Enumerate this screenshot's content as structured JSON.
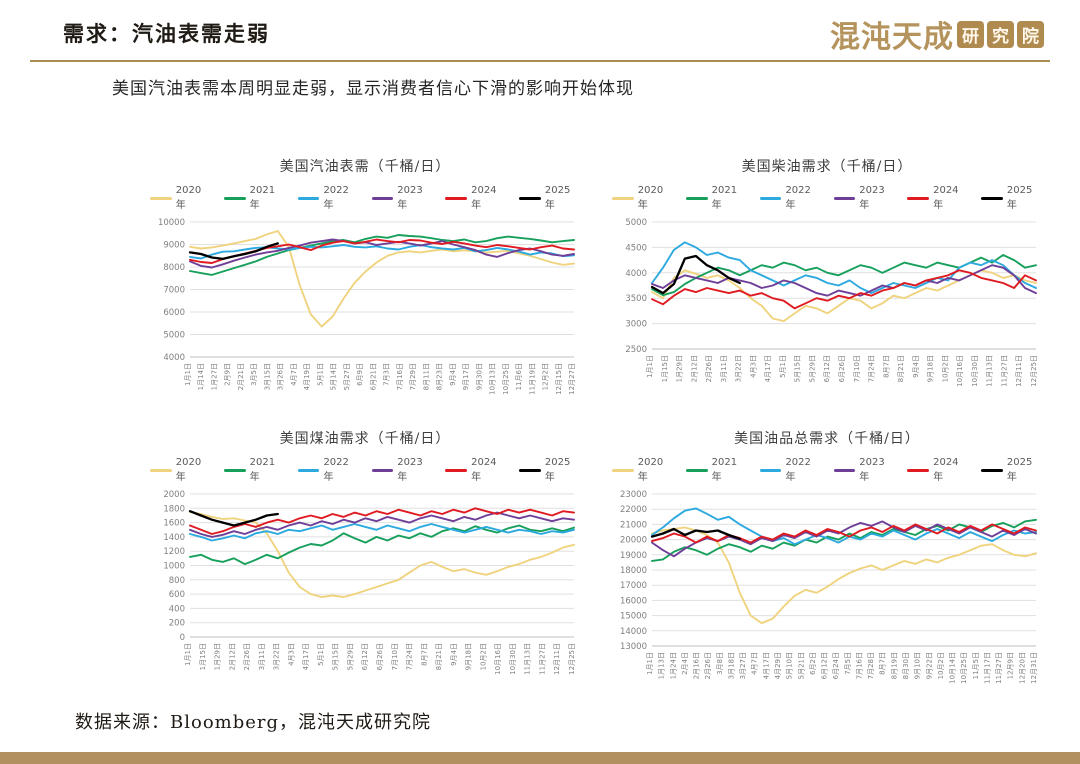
{
  "page": {
    "title": "需求：汽油表需走弱",
    "subtitle": "美国汽油表需本周明显走弱，显示消费者信心下滑的影响开始体现",
    "footer": "数据来源：Bloomberg，混沌天成研究院",
    "logo_text": "混沌天成",
    "logo_seal": [
      "研",
      "究",
      "院"
    ],
    "accent_gold": "#a98d52",
    "bottom_bar_color": "#b2905f"
  },
  "series_colors": [
    "#EFD37E",
    "#17A05C",
    "#2CA9DF",
    "#6F3F98",
    "#DF1B21",
    "#000000"
  ],
  "chart_data": [
    {
      "type": "line",
      "title": "美国汽油表需（千桶/日）",
      "ylabel": "",
      "xlabel": "",
      "ylim": [
        4000,
        10000
      ],
      "ytick_step": 1000,
      "grid": true,
      "legend_position": "top",
      "x_labels": [
        "1月1日",
        "1月14日",
        "1月27日",
        "2月9日",
        "2月21日",
        "3月5日",
        "3月15日",
        "3月26日",
        "4月7日",
        "4月19日",
        "5月1日",
        "5月14日",
        "5月27日",
        "6月9日",
        "6月21日",
        "7月3日",
        "7月16日",
        "7月29日",
        "8月11日",
        "8月23日",
        "9月4日",
        "9月17日",
        "9月30日",
        "10月13日",
        "10月25日",
        "11月6日",
        "11月19日",
        "12月2日",
        "12月15日",
        "12月27日"
      ],
      "series": [
        {
          "name": "2020年",
          "values": [
            8900,
            8820,
            8870,
            8950,
            9050,
            9150,
            9250,
            9450,
            9600,
            8900,
            7200,
            5900,
            5350,
            5800,
            6600,
            7300,
            7800,
            8200,
            8500,
            8650,
            8700,
            8650,
            8720,
            8780,
            8700,
            8740,
            8700,
            8640,
            8680,
            8720,
            8600,
            8500,
            8350,
            8200,
            8100,
            8150
          ]
        },
        {
          "name": "2021年",
          "values": [
            7820,
            7730,
            7650,
            7800,
            7950,
            8100,
            8250,
            8450,
            8600,
            8750,
            8850,
            8950,
            9050,
            9150,
            9200,
            9100,
            9250,
            9350,
            9300,
            9420,
            9380,
            9350,
            9280,
            9200,
            9150,
            9220,
            9100,
            9150,
            9280,
            9350,
            9300,
            9250,
            9180,
            9100,
            9150,
            9200
          ]
        },
        {
          "name": "2022年",
          "values": [
            8450,
            8380,
            8550,
            8680,
            8700,
            8780,
            8850,
            8880,
            8820,
            8780,
            8850,
            8900,
            8870,
            8920,
            8980,
            8900,
            8870,
            8920,
            8820,
            8780,
            8900,
            8980,
            8880,
            8820,
            8780,
            8850,
            8700,
            8750,
            8850,
            8780,
            8680,
            8550,
            8650,
            8600,
            8480,
            8520
          ]
        },
        {
          "name": "2023年",
          "values": [
            8250,
            8050,
            7980,
            8120,
            8280,
            8420,
            8550,
            8650,
            8720,
            8850,
            8950,
            9080,
            9150,
            9220,
            9150,
            9050,
            9100,
            8980,
            9050,
            9120,
            9050,
            8950,
            9050,
            9150,
            9000,
            8880,
            8750,
            8550,
            8450,
            8620,
            8750,
            8820,
            8700,
            8550,
            8500,
            8580
          ]
        },
        {
          "name": "2024年",
          "values": [
            8320,
            8220,
            8180,
            8350,
            8480,
            8600,
            8720,
            8850,
            8920,
            9000,
            8880,
            8750,
            8950,
            9080,
            9150,
            9050,
            9120,
            9220,
            9150,
            9100,
            9200,
            9180,
            9080,
            9020,
            9120,
            9050,
            8950,
            8880,
            8980,
            8920,
            8850,
            8780,
            8880,
            8950,
            8820,
            8780
          ]
        },
        {
          "name": "2025年",
          "values": [
            8650,
            8580,
            8420,
            8360,
            8480,
            8580,
            8700,
            8900,
            9050
          ]
        }
      ]
    },
    {
      "type": "line",
      "title": "美国柴油需求（千桶/日）",
      "ylabel": "",
      "xlabel": "",
      "ylim": [
        2500,
        5000
      ],
      "ytick_step": 500,
      "grid": true,
      "legend_position": "top",
      "x_labels": [
        "1月1日",
        "1月15日",
        "1月29日",
        "2月12日",
        "2月26日",
        "3月11日",
        "3月22日",
        "4月3日",
        "4月17日",
        "5月1日",
        "5月15日",
        "5月29日",
        "6月12日",
        "6月26日",
        "7月10日",
        "7月24日",
        "8月7日",
        "8月21日",
        "9月4日",
        "9月18日",
        "10月2日",
        "10月16日",
        "10月30日",
        "11月13日",
        "11月27日",
        "12月11日",
        "12月25日"
      ],
      "series": [
        {
          "name": "2020年",
          "values": [
            3620,
            3500,
            3900,
            4050,
            3980,
            3900,
            3950,
            3850,
            3700,
            3500,
            3350,
            3100,
            3050,
            3200,
            3350,
            3300,
            3200,
            3350,
            3500,
            3450,
            3300,
            3400,
            3550,
            3500,
            3600,
            3700,
            3650,
            3750,
            3850,
            3950,
            4050,
            4000,
            3900,
            3950,
            3850,
            3800
          ]
        },
        {
          "name": "2021年",
          "values": [
            3680,
            3560,
            3620,
            3780,
            3900,
            4000,
            4100,
            4050,
            3950,
            4050,
            4150,
            4100,
            4200,
            4150,
            4050,
            4100,
            4000,
            3950,
            4050,
            4150,
            4100,
            4000,
            4100,
            4200,
            4150,
            4100,
            4200,
            4150,
            4100,
            4200,
            4300,
            4200,
            4350,
            4250,
            4100,
            4150
          ]
        },
        {
          "name": "2022年",
          "values": [
            3800,
            4100,
            4450,
            4600,
            4500,
            4350,
            4400,
            4300,
            4250,
            4050,
            3950,
            3850,
            3750,
            3850,
            3950,
            3900,
            3800,
            3750,
            3850,
            3700,
            3600,
            3700,
            3800,
            3750,
            3700,
            3800,
            3900,
            3850,
            4100,
            4200,
            4150,
            4250,
            4150,
            3950,
            3800,
            3700
          ]
        },
        {
          "name": "2023年",
          "values": [
            3780,
            3700,
            3850,
            3950,
            3900,
            3850,
            3800,
            3900,
            3850,
            3800,
            3700,
            3750,
            3850,
            3800,
            3700,
            3600,
            3550,
            3650,
            3600,
            3550,
            3650,
            3750,
            3700,
            3800,
            3750,
            3850,
            3800,
            3900,
            3850,
            3950,
            4050,
            4150,
            4100,
            3950,
            3700,
            3600
          ]
        },
        {
          "name": "2024年",
          "values": [
            3480,
            3380,
            3550,
            3680,
            3620,
            3700,
            3650,
            3600,
            3650,
            3550,
            3600,
            3500,
            3450,
            3300,
            3400,
            3500,
            3450,
            3550,
            3500,
            3600,
            3550,
            3650,
            3700,
            3800,
            3750,
            3850,
            3900,
            3950,
            4050,
            4000,
            3900,
            3850,
            3800,
            3700,
            3950,
            3850
          ]
        },
        {
          "name": "2025年",
          "values": [
            3720,
            3600,
            3780,
            4280,
            4330,
            4150,
            4050,
            3900,
            3800
          ]
        }
      ]
    },
    {
      "type": "line",
      "title": "美国煤油需求（千桶/日）",
      "ylabel": "",
      "xlabel": "",
      "ylim": [
        0,
        2000
      ],
      "ytick_step": 200,
      "grid": true,
      "legend_position": "top",
      "x_labels": [
        "1月1日",
        "1月15日",
        "1月29日",
        "2月12日",
        "2月26日",
        "3月11日",
        "3月22日",
        "4月3日",
        "4月17日",
        "5月1日",
        "5月15日",
        "5月29日",
        "6月12日",
        "6月26日",
        "7月10日",
        "7月24日",
        "8月7日",
        "8月21日",
        "9月4日",
        "9月18日",
        "10月2日",
        "10月16日",
        "10月30日",
        "11月13日",
        "11月27日",
        "12月11日",
        "12月25日"
      ],
      "series": [
        {
          "name": "2020年",
          "values": [
            1750,
            1720,
            1680,
            1650,
            1660,
            1630,
            1600,
            1450,
            1200,
            900,
            700,
            600,
            560,
            580,
            560,
            600,
            650,
            700,
            750,
            800,
            900,
            1000,
            1050,
            980,
            920,
            950,
            900,
            870,
            920,
            980,
            1020,
            1080,
            1120,
            1180,
            1250,
            1290
          ]
        },
        {
          "name": "2021年",
          "values": [
            1120,
            1150,
            1080,
            1050,
            1100,
            1020,
            1080,
            1150,
            1100,
            1180,
            1250,
            1300,
            1280,
            1350,
            1450,
            1380,
            1320,
            1400,
            1350,
            1420,
            1380,
            1450,
            1400,
            1480,
            1520,
            1480,
            1550,
            1500,
            1460,
            1520,
            1560,
            1500,
            1480,
            1520,
            1480,
            1530
          ]
        },
        {
          "name": "2022年",
          "values": [
            1440,
            1400,
            1350,
            1380,
            1420,
            1380,
            1450,
            1480,
            1440,
            1500,
            1480,
            1520,
            1560,
            1500,
            1540,
            1580,
            1540,
            1500,
            1560,
            1520,
            1480,
            1540,
            1580,
            1540,
            1500,
            1460,
            1500,
            1540,
            1500,
            1460,
            1500,
            1480,
            1440,
            1480,
            1460,
            1500
          ]
        },
        {
          "name": "2023年",
          "values": [
            1500,
            1440,
            1400,
            1430,
            1480,
            1440,
            1500,
            1540,
            1500,
            1560,
            1600,
            1560,
            1620,
            1580,
            1640,
            1600,
            1660,
            1620,
            1680,
            1640,
            1600,
            1660,
            1700,
            1660,
            1620,
            1680,
            1640,
            1700,
            1740,
            1700,
            1660,
            1700,
            1660,
            1620,
            1660,
            1640
          ]
        },
        {
          "name": "2024年",
          "values": [
            1560,
            1500,
            1440,
            1480,
            1540,
            1580,
            1540,
            1600,
            1640,
            1600,
            1660,
            1700,
            1660,
            1720,
            1680,
            1740,
            1700,
            1760,
            1720,
            1780,
            1740,
            1700,
            1760,
            1720,
            1780,
            1740,
            1800,
            1760,
            1720,
            1780,
            1740,
            1780,
            1740,
            1700,
            1760,
            1740
          ]
        },
        {
          "name": "2025年",
          "values": [
            1760,
            1700,
            1640,
            1600,
            1560,
            1600,
            1640,
            1700,
            1720
          ]
        }
      ]
    },
    {
      "type": "line",
      "title": "美国油品总需求（千桶/日）",
      "ylabel": "",
      "xlabel": "",
      "ylim": [
        13000,
        23000
      ],
      "ytick_step": 1000,
      "grid": true,
      "legend_position": "top",
      "x_labels": [
        "1月1日",
        "1月13日",
        "1月24日",
        "2月4日",
        "2月16日",
        "2月26日",
        "3月8日",
        "3月18日",
        "3月27日",
        "4月7日",
        "4月17日",
        "4月29日",
        "5月10日",
        "5月21日",
        "6月2日",
        "6月12日",
        "6月24日",
        "7月5日",
        "7月16日",
        "7月28日",
        "8月7日",
        "8月19日",
        "8月30日",
        "9月10日",
        "9月22日",
        "10月2日",
        "10月14日",
        "10月25日",
        "11月5日",
        "11月17日",
        "11月27日",
        "12月9日",
        "12月20日",
        "12月31日"
      ],
      "series": [
        {
          "name": "2020年",
          "values": [
            20400,
            20600,
            20700,
            20800,
            20600,
            20300,
            19800,
            18500,
            16500,
            15000,
            14500,
            14800,
            15600,
            16300,
            16700,
            16500,
            16900,
            17400,
            17800,
            18100,
            18300,
            18000,
            18300,
            18600,
            18400,
            18700,
            18500,
            18800,
            19000,
            19300,
            19600,
            19700,
            19300,
            19000,
            18900,
            19100
          ]
        },
        {
          "name": "2021年",
          "values": [
            18600,
            18700,
            19200,
            19500,
            19300,
            19000,
            19400,
            19700,
            19500,
            19200,
            19600,
            19400,
            19800,
            19600,
            20000,
            19800,
            20200,
            20000,
            20400,
            20100,
            20500,
            20300,
            20700,
            20500,
            20300,
            20700,
            20900,
            20600,
            21000,
            20800,
            20500,
            20900,
            21100,
            20800,
            21200,
            21300
          ]
        },
        {
          "name": "2022年",
          "values": [
            20300,
            20800,
            21400,
            21900,
            22050,
            21700,
            21300,
            21500,
            21000,
            20600,
            20200,
            19900,
            20100,
            19700,
            20000,
            20300,
            20100,
            19800,
            20200,
            20000,
            20400,
            20200,
            20600,
            20300,
            20000,
            20400,
            20700,
            20400,
            20100,
            20500,
            20200,
            19900,
            20300,
            20600,
            20400,
            20500
          ]
        },
        {
          "name": "2023年",
          "values": [
            19800,
            19300,
            18900,
            19400,
            19800,
            20100,
            19900,
            20200,
            20000,
            19700,
            20100,
            19900,
            20300,
            20100,
            20500,
            20200,
            20600,
            20400,
            20800,
            21100,
            20900,
            21200,
            20800,
            20500,
            20900,
            20600,
            21000,
            20700,
            20400,
            20800,
            20500,
            20200,
            20600,
            20300,
            20700,
            20400
          ]
        },
        {
          "name": "2024年",
          "values": [
            19900,
            20100,
            20400,
            20200,
            19800,
            20200,
            19900,
            20300,
            20100,
            19800,
            20200,
            20000,
            20400,
            20200,
            20600,
            20300,
            20700,
            20500,
            20200,
            20600,
            20800,
            20500,
            20900,
            20600,
            21000,
            20700,
            20400,
            20800,
            20500,
            20900,
            20600,
            21000,
            20700,
            20400,
            20800,
            20600
          ]
        },
        {
          "name": "2025年",
          "values": [
            20200,
            20400,
            20700,
            20300,
            20600,
            20500,
            20600,
            20300,
            20050
          ]
        }
      ]
    }
  ]
}
